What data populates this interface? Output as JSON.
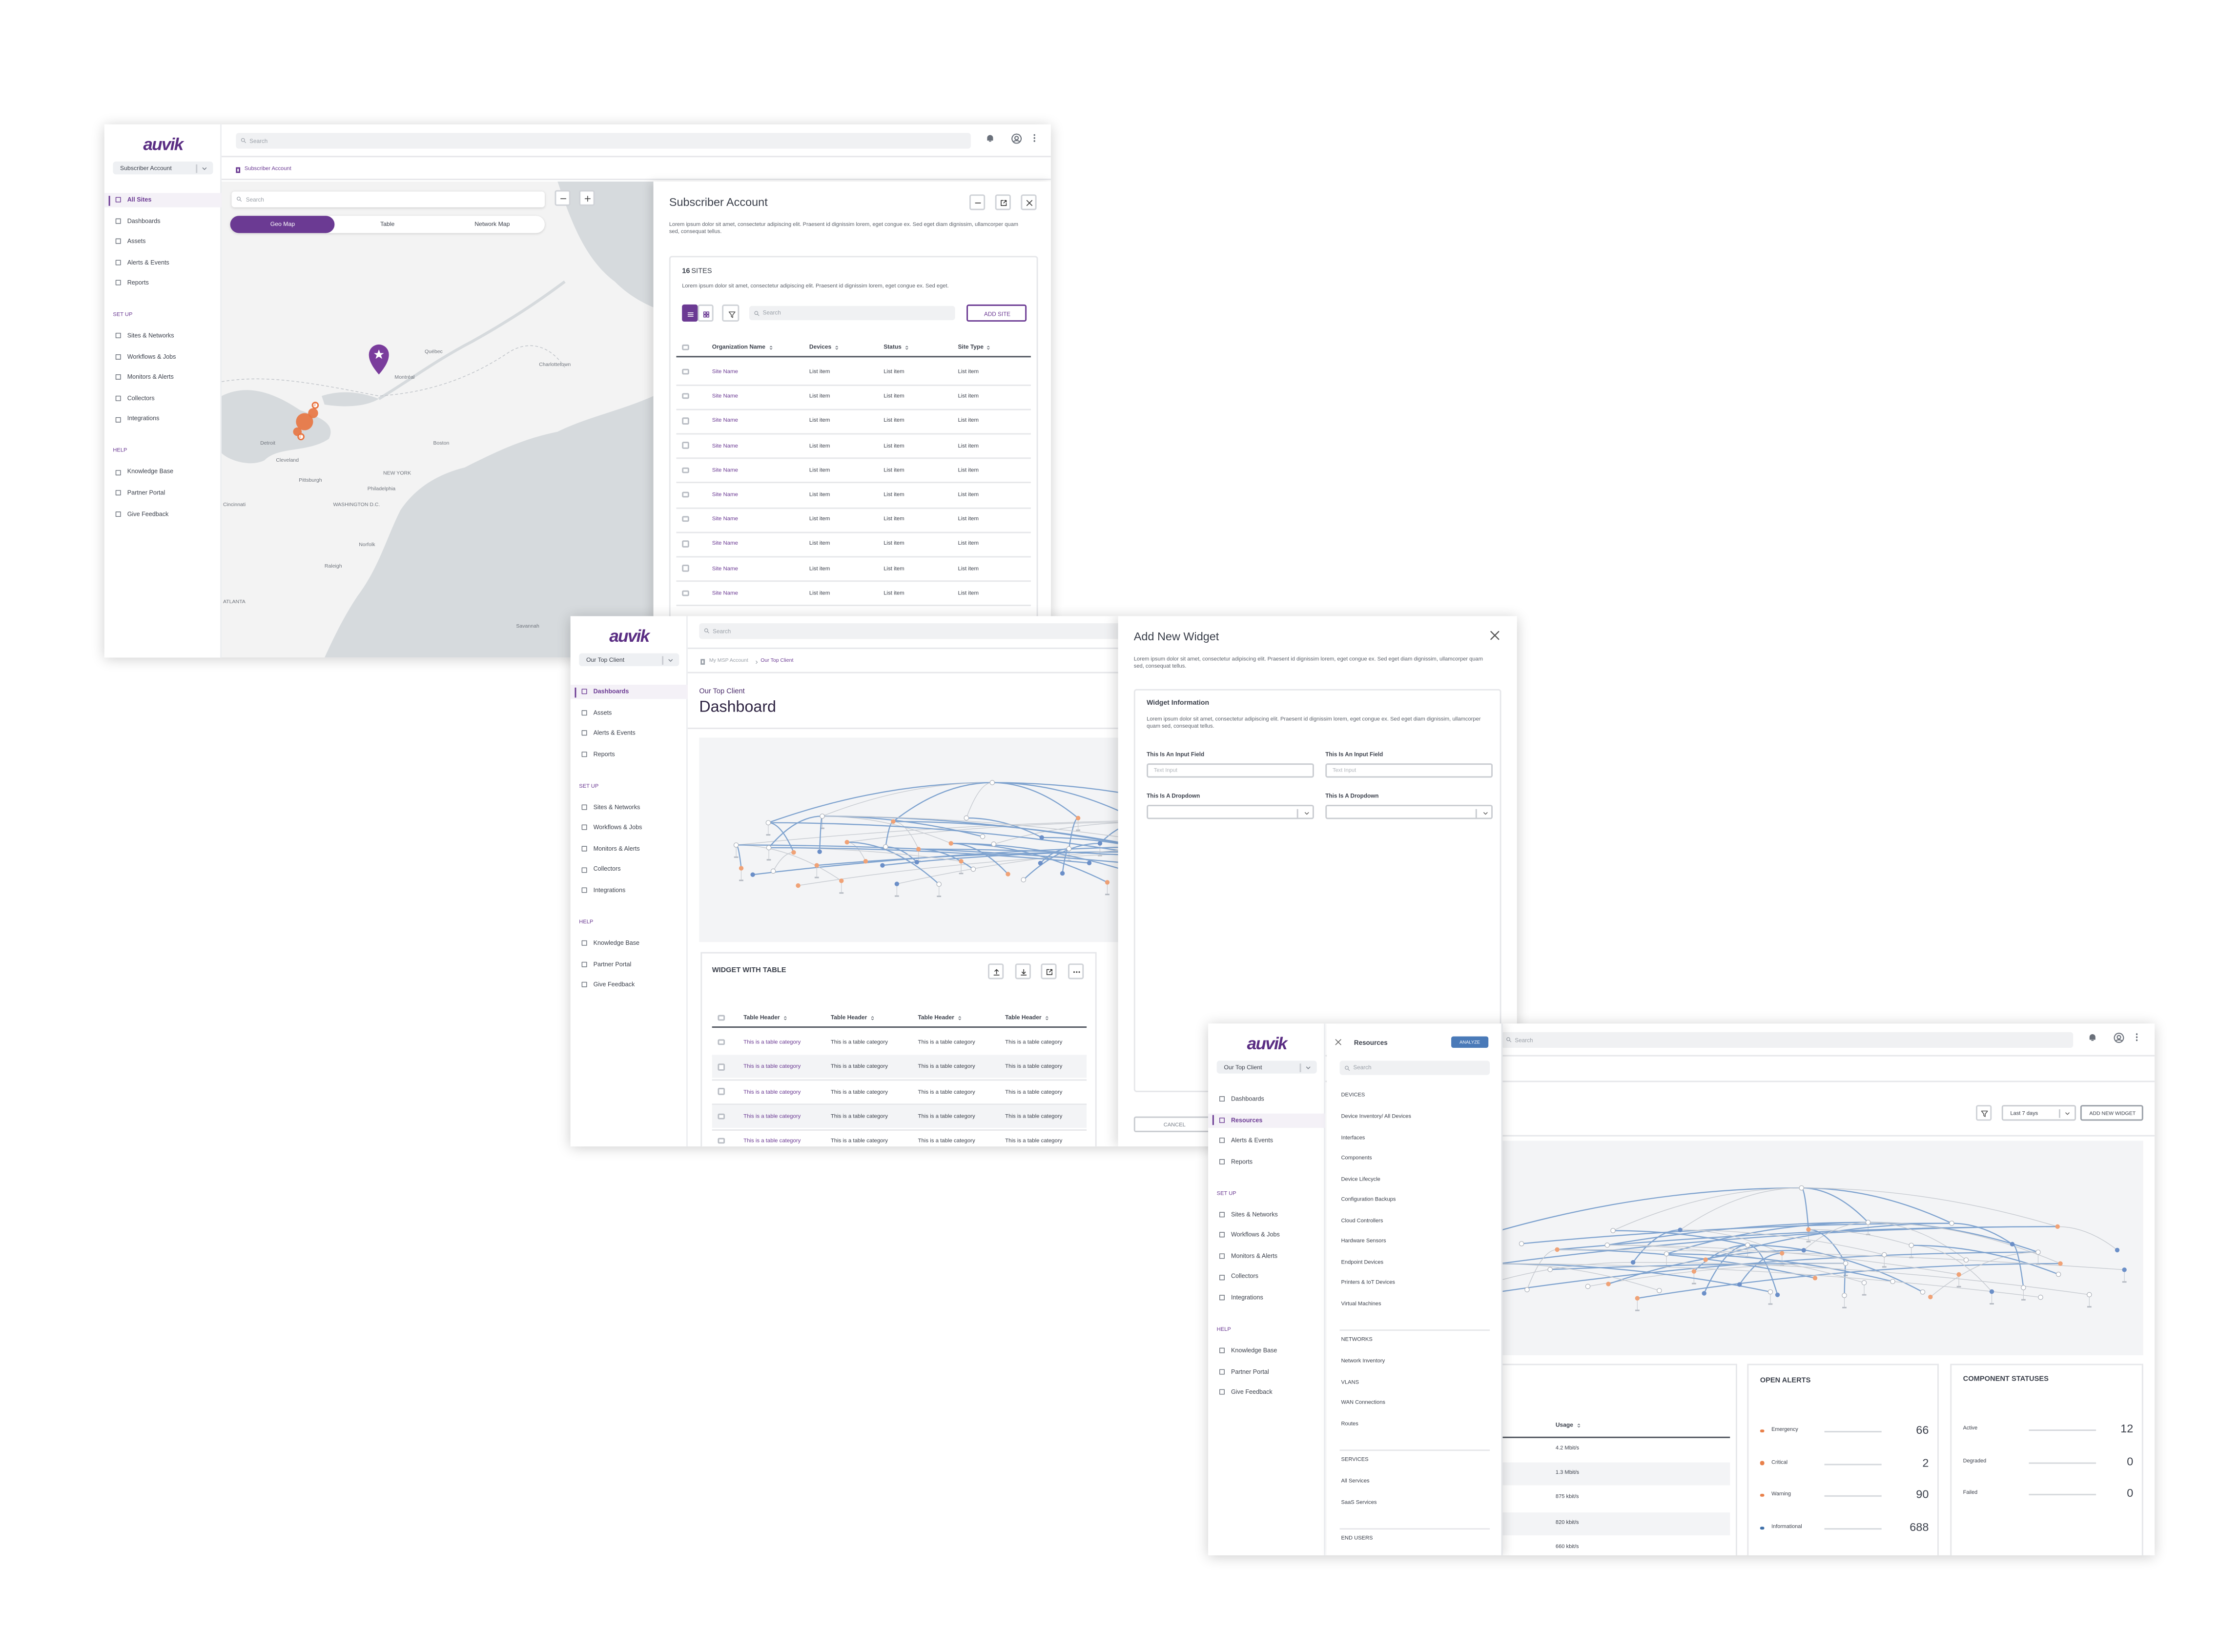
{
  "overview": {
    "sidebar": {
      "brand": "auvik",
      "account": "Subscriber Account",
      "main": [
        "All Sites",
        "Dashboards",
        "Assets",
        "Alerts & Events",
        "Reports"
      ],
      "active": 0,
      "setup_title": "SET UP",
      "setup": [
        "Sites & Networks",
        "Workflows & Jobs",
        "Monitors & Alerts",
        "Collectors",
        "Integrations"
      ],
      "help_title": "HELP",
      "help": [
        "Knowledge Base",
        "Partner Portal",
        "Give Feedback"
      ]
    },
    "search": "Search",
    "breadcrumb": "Subscriber Account",
    "map": {
      "search": "Search",
      "tabs": [
        "Geo Map",
        "Table",
        "Network Map"
      ],
      "active_tab": 0,
      "labels": [
        "Québec",
        "Charlottetown",
        "Montréal",
        "Detroit",
        "Boston",
        "NEW YORK",
        "Pittsburgh",
        "Cleveland",
        "Philadelphia",
        "WASHINGTON D.C.",
        "Norfolk",
        "Raleigh",
        "Cincinnati",
        "ATLANTA",
        "Savannah"
      ],
      "clusters": [
        "3",
        "2"
      ]
    },
    "panel": {
      "title": "Subscriber Account",
      "description": "Lorem ipsum dolor sit amet, consectetur adipiscing elit. Praesent id dignissim lorem, eget congue ex. Sed eget diam dignissim, ullamcorper quam sed, consequat tellus.",
      "count": "16",
      "count_label": "SITES",
      "card_description": "Lorem ipsum dolor sit amet, consectetur adipiscing elit. Praesent id dignissim lorem, eget congue ex. Sed eget.",
      "search": "Search",
      "add_button": "ADD SITE",
      "columns": [
        "Organization Name",
        "Devices",
        "Status",
        "Site Type"
      ],
      "rows": [
        [
          "Site Name",
          "List item",
          "List item",
          "List item"
        ],
        [
          "Site Name",
          "List item",
          "List item",
          "List item"
        ],
        [
          "Site Name",
          "List item",
          "List item",
          "List item"
        ],
        [
          "Site Name",
          "List item",
          "List item",
          "List item"
        ],
        [
          "Site Name",
          "List item",
          "List item",
          "List item"
        ],
        [
          "Site Name",
          "List item",
          "List item",
          "List item"
        ],
        [
          "Site Name",
          "List item",
          "List item",
          "List item"
        ],
        [
          "Site Name",
          "List item",
          "List item",
          "List item"
        ],
        [
          "Site Name",
          "List item",
          "List item",
          "List item"
        ],
        [
          "Site Name",
          "List item",
          "List item",
          "List item"
        ]
      ]
    }
  },
  "dashboard": {
    "sidebar": {
      "brand": "auvik",
      "account": "Our Top Client",
      "main": [
        "Dashboards",
        "Assets",
        "Alerts & Events",
        "Reports"
      ],
      "active": 0,
      "setup_title": "SET UP",
      "setup": [
        "Sites & Networks",
        "Workflows & Jobs",
        "Monitors & Alerts",
        "Collectors",
        "Integrations"
      ],
      "help_title": "HELP",
      "help": [
        "Knowledge Base",
        "Partner Portal",
        "Give Feedback"
      ]
    },
    "search": "Search",
    "breadcrumb": [
      "My MSP Account",
      "Our Top Client"
    ],
    "subtitle": "Our Top Client",
    "title": "Dashboard",
    "widget": {
      "title": "WIDGET WITH TABLE",
      "columns": [
        "Table Header",
        "Table Header",
        "Table Header",
        "Table Header"
      ],
      "rows": [
        [
          "This is a table category",
          "This is a table category",
          "This is a table category",
          "This is a table category"
        ],
        [
          "This is a table category",
          "This is a table category",
          "This is a table category",
          "This is a table category"
        ],
        [
          "This is a table category",
          "This is a table category",
          "This is a table category",
          "This is a table category"
        ],
        [
          "This is a table category",
          "This is a table category",
          "This is a table category",
          "This is a table category"
        ],
        [
          "This is a table category",
          "This is a table category",
          "This is a table category",
          "This is a table category"
        ]
      ]
    },
    "modal": {
      "title": "Add New Widget",
      "description": "Lorem ipsum dolor sit amet, consectetur adipiscing elit. Praesent id dignissim lorem, eget congue ex. Sed eget diam dignissim, ullamcorper quam sed, consequat tellus.",
      "section_title": "Widget Information",
      "section_description": "Lorem ipsum dolor sit amet, consectetur adipiscing elit. Praesent id dignissim lorem, eget congue ex. Sed eget diam dignissim, ullamcorper quam sed, consequat tellus.",
      "fields": [
        {
          "label": "This Is An Input Field",
          "placeholder": "Text Input"
        },
        {
          "label": "This Is An Input Field",
          "placeholder": "Text Input"
        }
      ],
      "dropdowns": [
        "This Is A Dropdown",
        "This Is A Dropdown"
      ],
      "cancel": "CANCEL"
    }
  },
  "resources": {
    "sidebar": {
      "brand": "auvik",
      "account": "Our Top Client",
      "main": [
        "Dashboards",
        "Resources",
        "Alerts & Events",
        "Reports"
      ],
      "active": 1,
      "setup_title": "SET UP",
      "setup": [
        "Sites & Networks",
        "Workflows & Jobs",
        "Monitors & Alerts",
        "Collectors",
        "Integrations"
      ],
      "help_title": "HELP",
      "help": [
        "Knowledge Base",
        "Partner Portal",
        "Give Feedback"
      ]
    },
    "menu": {
      "title": "Resources",
      "action": "ANALYZE",
      "search": "Search",
      "sections": [
        {
          "title": "DEVICES",
          "items": [
            "Device Inventory/ All Devices",
            "Interfaces",
            "Components",
            "Device Lifecycle",
            "Configuration Backups",
            "Cloud Controllers",
            "Hardware Sensors",
            "Endpoint Devices",
            "Printers & IoT Devices",
            "Virtual Machines"
          ]
        },
        {
          "title": "NETWORKS",
          "items": [
            "Network Inventory",
            "VLANS",
            "WAN Connections",
            "Routes"
          ]
        },
        {
          "title": "SERVICES",
          "items": [
            "All Services",
            "SaaS Services"
          ]
        },
        {
          "title": "END USERS"
        }
      ]
    },
    "toolbar": {
      "range": "Last 7 days",
      "add": "ADD NEW WIDGET"
    },
    "usage": {
      "column": "Usage",
      "values": [
        "4.2 Mbit/s",
        "1.3 Mbit/s",
        "875 kbit/s",
        "820 kbit/s",
        "660 kbit/s"
      ]
    },
    "alerts": {
      "title": "OPEN ALERTS",
      "rows": [
        {
          "label": "Emergency",
          "count": 66,
          "color": "#e8804a"
        },
        {
          "label": "Critical",
          "count": 2,
          "color": "#e8804a"
        },
        {
          "label": "Warning",
          "count": 90,
          "color": "#e8804a"
        },
        {
          "label": "Informational",
          "count": 688,
          "color": "#3e6fa8"
        }
      ]
    },
    "components": {
      "title": "COMPONENT STATUSES",
      "rows": [
        {
          "label": "Active",
          "count": 12
        },
        {
          "label": "Degraded",
          "count": 0
        },
        {
          "label": "Failed",
          "count": 0
        }
      ]
    }
  }
}
